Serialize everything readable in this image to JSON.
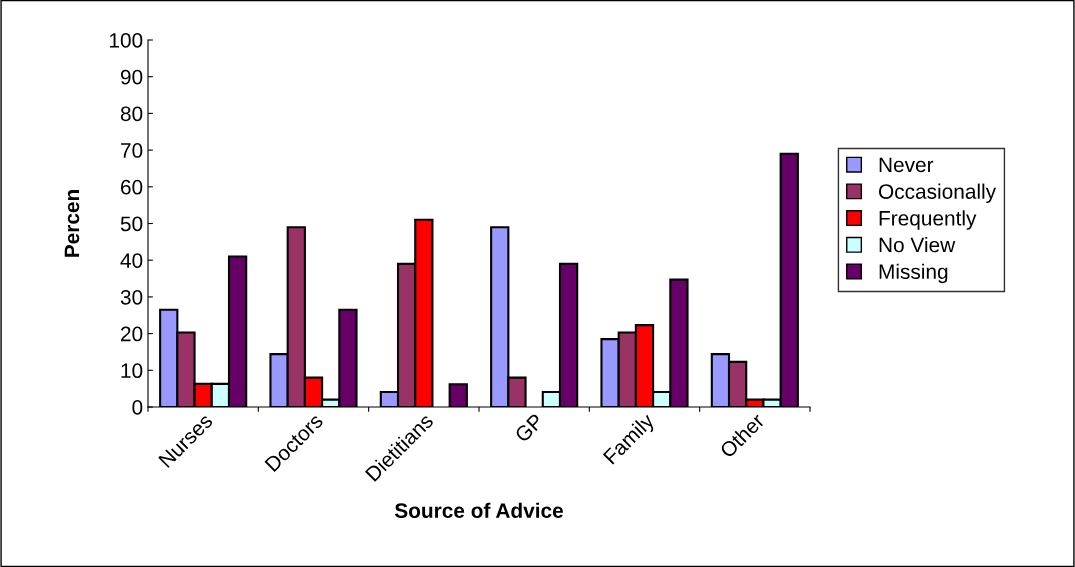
{
  "chart_data": {
    "type": "bar",
    "xlabel": "Source of Advice",
    "ylabel": "Percen",
    "categories": [
      "Nurses",
      "Doctors",
      "Dietitians",
      "GP",
      "Family",
      "Other"
    ],
    "series": [
      {
        "name": "Never",
        "color": "#9999ff",
        "values": [
          26.5,
          14.4,
          4.1,
          49,
          18.5,
          14.4
        ]
      },
      {
        "name": "Occasionally",
        "color": "#993366",
        "values": [
          20.3,
          49,
          39,
          8,
          20.3,
          12.3
        ]
      },
      {
        "name": "Frequently",
        "color": "#ff0000",
        "values": [
          6.3,
          8,
          51,
          null,
          22.3,
          2
        ]
      },
      {
        "name": "No View",
        "color": "#ccffff",
        "values": [
          6.3,
          2,
          null,
          4.1,
          4.1,
          2
        ]
      },
      {
        "name": "Missing",
        "color": "#660066",
        "values": [
          41,
          26.5,
          6.2,
          39,
          34.7,
          69
        ]
      }
    ],
    "ylim": [
      0,
      100
    ],
    "yticks": [
      0,
      10,
      20,
      30,
      40,
      50,
      60,
      70,
      80,
      90,
      100
    ],
    "grid": false,
    "legend": "right"
  }
}
